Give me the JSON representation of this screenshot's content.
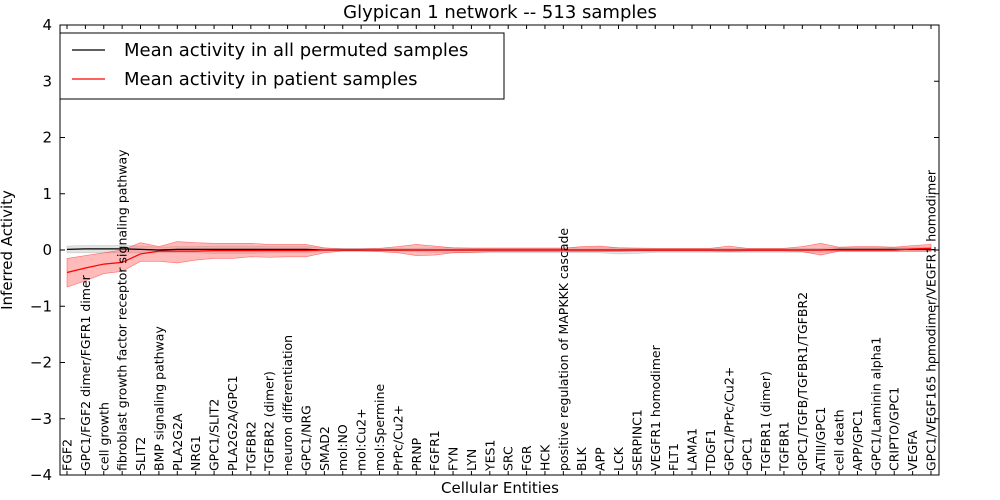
{
  "chart_data": {
    "type": "line",
    "title": "Glypican 1 network -- 513 samples",
    "xlabel": "Cellular Entities",
    "ylabel": "Inferred Activity",
    "ylim": [
      -4,
      4
    ],
    "yticks": [
      "4",
      "3",
      "2",
      "1",
      "0",
      "−1",
      "−2",
      "−3",
      "−4"
    ],
    "ytick_values": [
      4,
      3,
      2,
      1,
      0,
      -1,
      -2,
      -3,
      -4
    ],
    "legend_position": "top-left",
    "categories": [
      "FGF2",
      "GPC1/FGF2 dimer/FGFR1 dimer",
      "cell growth",
      "fibroblast growth factor receptor signaling pathway",
      "SLIT2",
      "BMP signaling pathway",
      "PLA2G2A",
      "NRG1",
      "GPC1/SLIT2",
      "PLA2G2A/GPC1",
      "TGFBR2",
      "TGFBR2 (dimer)",
      "neuron differentiation",
      "GPC1/NRG",
      "SMAD2",
      "mol:NO",
      "mol:Cu2+",
      "mol:Spermine",
      "PrPc/Cu2+",
      "PRNP",
      "FGFR1",
      "FYN",
      "LYN",
      "YES1",
      "SRC",
      "FGR",
      "HCK",
      "positive regulation of MAPKKK cascade",
      "BLK",
      "APP",
      "LCK",
      "SERPINC1",
      "VEGFR1 homodimer",
      "FLT1",
      "LAMA1",
      "TDGF1",
      "GPC1/PrPc/Cu2+",
      "GPC1",
      "TGFBR1 (dimer)",
      "TGFBR1",
      "GPC1/TGFB/TGFBR1/TGFBR2",
      "ATIII/GPC1",
      "cell death",
      "APP/GPC1",
      "GPC1/Laminin alpha1",
      "CRIPTO/GPC1",
      "VEGFA",
      "GPC1/VEGF165 homodimer/VEGFR1 homodimer"
    ],
    "series": [
      {
        "name": "Mean activity in all permuted samples",
        "color": "#000000",
        "values": [
          0.01,
          0.02,
          0.02,
          0.02,
          0.01,
          0.0,
          0.01,
          0.01,
          0.01,
          0.01,
          0.01,
          0.01,
          0.01,
          0.01,
          0.0,
          0.0,
          0.0,
          0.0,
          0.0,
          0.0,
          0.0,
          0.0,
          0.0,
          0.0,
          0.0,
          0.0,
          0.0,
          0.0,
          0.0,
          0.0,
          0.0,
          0.0,
          0.0,
          0.0,
          0.0,
          0.0,
          0.0,
          0.0,
          0.0,
          0.0,
          0.0,
          0.0,
          0.01,
          0.01,
          0.01,
          0.01,
          0.01,
          0.01
        ],
        "band_low": [
          -0.05,
          -0.05,
          -0.05,
          -0.05,
          -0.05,
          -0.05,
          -0.05,
          -0.05,
          -0.06,
          -0.06,
          -0.06,
          -0.05,
          -0.05,
          -0.05,
          -0.02,
          -0.02,
          -0.02,
          -0.02,
          -0.02,
          -0.03,
          -0.04,
          -0.05,
          -0.05,
          -0.05,
          -0.05,
          -0.05,
          -0.05,
          -0.05,
          -0.05,
          -0.05,
          -0.07,
          -0.06,
          -0.04,
          -0.04,
          -0.04,
          -0.04,
          -0.04,
          -0.04,
          -0.04,
          -0.04,
          -0.04,
          -0.04,
          -0.03,
          -0.03,
          -0.03,
          -0.03,
          -0.03,
          -0.03
        ],
        "band_high": [
          0.07,
          0.08,
          0.08,
          0.08,
          0.07,
          0.05,
          0.06,
          0.06,
          0.07,
          0.07,
          0.07,
          0.06,
          0.06,
          0.06,
          0.03,
          0.03,
          0.03,
          0.03,
          0.03,
          0.03,
          0.04,
          0.04,
          0.04,
          0.04,
          0.04,
          0.04,
          0.04,
          0.04,
          0.04,
          0.04,
          0.04,
          0.04,
          0.03,
          0.03,
          0.03,
          0.03,
          0.03,
          0.03,
          0.03,
          0.03,
          0.03,
          0.03,
          0.05,
          0.05,
          0.05,
          0.05,
          0.05,
          0.05
        ]
      },
      {
        "name": "Mean activity in patient samples",
        "color": "#ff0000",
        "values": [
          -0.4,
          -0.32,
          -0.25,
          -0.22,
          -0.07,
          -0.02,
          -0.02,
          -0.02,
          -0.01,
          -0.01,
          -0.01,
          -0.01,
          -0.01,
          -0.01,
          0.0,
          0.0,
          0.0,
          0.0,
          0.0,
          0.0,
          0.0,
          0.0,
          0.0,
          0.0,
          0.0,
          0.0,
          0.0,
          0.0,
          0.0,
          0.0,
          0.0,
          0.0,
          0.0,
          0.0,
          0.0,
          0.0,
          0.0,
          0.0,
          0.0,
          0.0,
          0.0,
          0.0,
          0.0,
          0.0,
          0.0,
          0.0,
          0.02,
          0.03
        ],
        "band_low": [
          -0.66,
          -0.55,
          -0.42,
          -0.38,
          -0.2,
          -0.2,
          -0.23,
          -0.18,
          -0.15,
          -0.15,
          -0.12,
          -0.13,
          -0.12,
          -0.12,
          -0.05,
          -0.02,
          -0.02,
          -0.03,
          -0.05,
          -0.1,
          -0.09,
          -0.05,
          -0.04,
          -0.03,
          -0.03,
          -0.03,
          -0.03,
          -0.03,
          -0.03,
          -0.03,
          -0.03,
          -0.02,
          -0.02,
          -0.02,
          -0.02,
          -0.02,
          -0.03,
          -0.02,
          -0.02,
          -0.02,
          -0.03,
          -0.09,
          -0.02,
          -0.02,
          -0.02,
          -0.02,
          -0.02,
          -0.02
        ],
        "band_high": [
          -0.15,
          -0.1,
          -0.05,
          0.0,
          0.13,
          0.06,
          0.15,
          0.13,
          0.12,
          0.12,
          0.12,
          0.1,
          0.1,
          0.1,
          0.04,
          0.02,
          0.02,
          0.03,
          0.06,
          0.1,
          0.07,
          0.04,
          0.03,
          0.03,
          0.03,
          0.03,
          0.03,
          0.03,
          0.06,
          0.07,
          0.04,
          0.03,
          0.03,
          0.03,
          0.03,
          0.03,
          0.07,
          0.03,
          0.03,
          0.03,
          0.06,
          0.12,
          0.05,
          0.06,
          0.06,
          0.05,
          0.08,
          0.1
        ]
      }
    ]
  }
}
